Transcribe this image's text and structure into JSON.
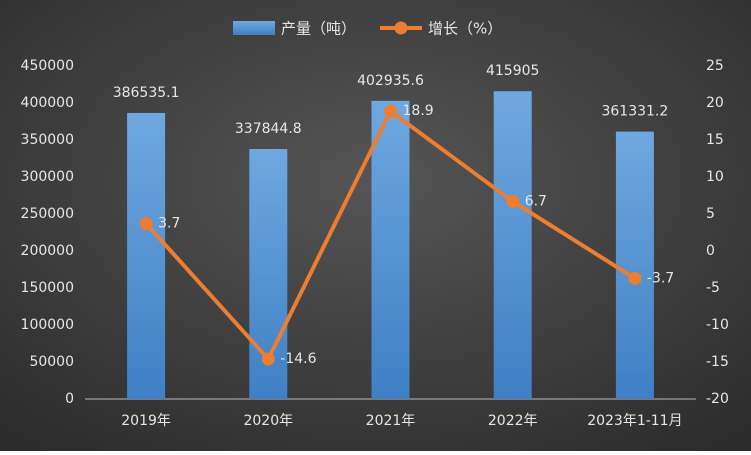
{
  "chart_data": {
    "type": "combo",
    "categories": [
      "2019年",
      "2020年",
      "2021年",
      "2022年",
      "2023年1-11月"
    ],
    "series": [
      {
        "name": "产量（吨）",
        "type": "bar",
        "color": "#5b9bd5",
        "values": [
          386535.1,
          337844.8,
          402935.6,
          415905,
          361331.2
        ]
      },
      {
        "name": "增长（%）",
        "type": "line",
        "axis": "y2",
        "color": "#ed7d31",
        "values": [
          3.7,
          -14.6,
          18.9,
          6.7,
          -3.7
        ]
      }
    ],
    "ylim": [
      0,
      450000
    ],
    "yticks": [
      0,
      50000,
      100000,
      150000,
      200000,
      250000,
      300000,
      350000,
      400000,
      450000
    ],
    "y2lim": [
      -20,
      25
    ],
    "y2ticks": [
      -20,
      -15,
      -10,
      -5,
      0,
      5,
      10,
      15,
      20,
      25
    ],
    "legend": "top"
  }
}
